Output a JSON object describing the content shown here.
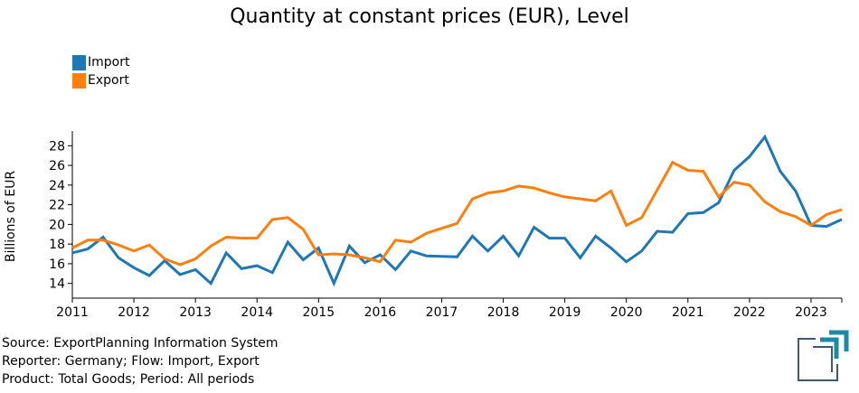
{
  "chart_data": {
    "type": "line",
    "title": "Quantity at constant prices (EUR), Level",
    "xlabel": "",
    "ylabel": "Billions of EUR",
    "xlim": [
      2011,
      2023.5
    ],
    "ylim": [
      12.5,
      29.5
    ],
    "yticks": [
      14,
      16,
      18,
      20,
      22,
      24,
      26,
      28
    ],
    "xticks": [
      2011,
      2012,
      2013,
      2014,
      2015,
      2016,
      2017,
      2018,
      2019,
      2020,
      2021,
      2022,
      2023
    ],
    "x_start": 2011,
    "x_step": 0.25,
    "grid": false,
    "legend_position": "top-left",
    "series": [
      {
        "name": "Import",
        "color": "#1f77b4",
        "values": [
          17.1,
          17.5,
          18.7,
          16.6,
          15.6,
          14.8,
          16.3,
          14.9,
          15.4,
          14.0,
          17.1,
          15.5,
          15.8,
          15.1,
          18.2,
          16.4,
          17.6,
          14.0,
          17.8,
          16.1,
          16.9,
          15.4,
          17.3,
          16.8,
          16.75,
          16.7,
          18.8,
          17.3,
          18.8,
          16.8,
          19.7,
          18.6,
          18.6,
          16.6,
          18.8,
          17.6,
          16.2,
          17.3,
          19.3,
          19.2,
          21.1,
          21.2,
          22.2,
          25.5,
          26.9,
          28.9,
          25.4,
          23.4,
          19.9,
          19.8,
          20.5
        ]
      },
      {
        "name": "Export",
        "color": "#ff7f0e",
        "values": [
          17.6,
          18.4,
          18.4,
          17.9,
          17.3,
          17.9,
          16.5,
          15.9,
          16.5,
          17.8,
          18.7,
          18.6,
          18.6,
          20.5,
          20.7,
          19.5,
          16.9,
          17.0,
          16.9,
          16.6,
          16.2,
          18.4,
          18.2,
          19.1,
          19.6,
          20.1,
          22.6,
          23.2,
          23.4,
          23.9,
          23.7,
          23.2,
          22.8,
          22.6,
          22.4,
          23.4,
          19.9,
          20.7,
          23.5,
          26.3,
          25.5,
          25.4,
          22.8,
          24.3,
          24.0,
          22.3,
          21.3,
          20.8,
          19.9,
          21.0,
          21.5
        ]
      }
    ]
  },
  "footer": {
    "source": "Source: ExportPlanning Information System",
    "reporter": "Reporter: Germany; Flow: Import, Export",
    "product": "Product: Total Goods; Period: All periods"
  },
  "logo": {
    "name": "exportplanning-logo",
    "color_primary": "#1a8aa8",
    "color_secondary": "#3d5a6e"
  }
}
